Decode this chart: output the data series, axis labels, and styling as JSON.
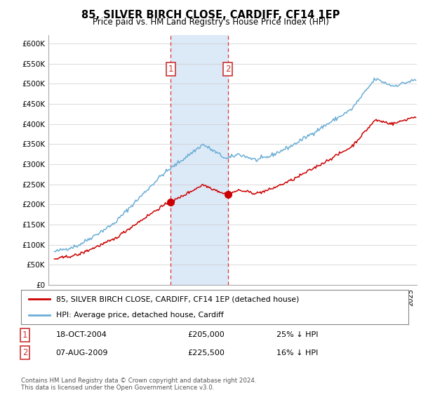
{
  "title": "85, SILVER BIRCH CLOSE, CARDIFF, CF14 1EP",
  "subtitle": "Price paid vs. HM Land Registry's House Price Index (HPI)",
  "legend_line1": "85, SILVER BIRCH CLOSE, CARDIFF, CF14 1EP (detached house)",
  "legend_line2": "HPI: Average price, detached house, Cardiff",
  "sale1_date": "18-OCT-2004",
  "sale1_price": 205000,
  "sale1_label": "25% ↓ HPI",
  "sale1_year": 2004.8,
  "sale2_date": "07-AUG-2009",
  "sale2_price": 225500,
  "sale2_label": "16% ↓ HPI",
  "sale2_year": 2009.6,
  "footnote": "Contains HM Land Registry data © Crown copyright and database right 2024.\nThis data is licensed under the Open Government Licence v3.0.",
  "hpi_color": "#6baed6",
  "price_color": "#cc0000",
  "shade_color": "#dce9f7",
  "marker_color": "#cc0000",
  "ylim_min": 0,
  "ylim_max": 620000,
  "xlim_min": 1994.5,
  "xlim_max": 2025.5
}
